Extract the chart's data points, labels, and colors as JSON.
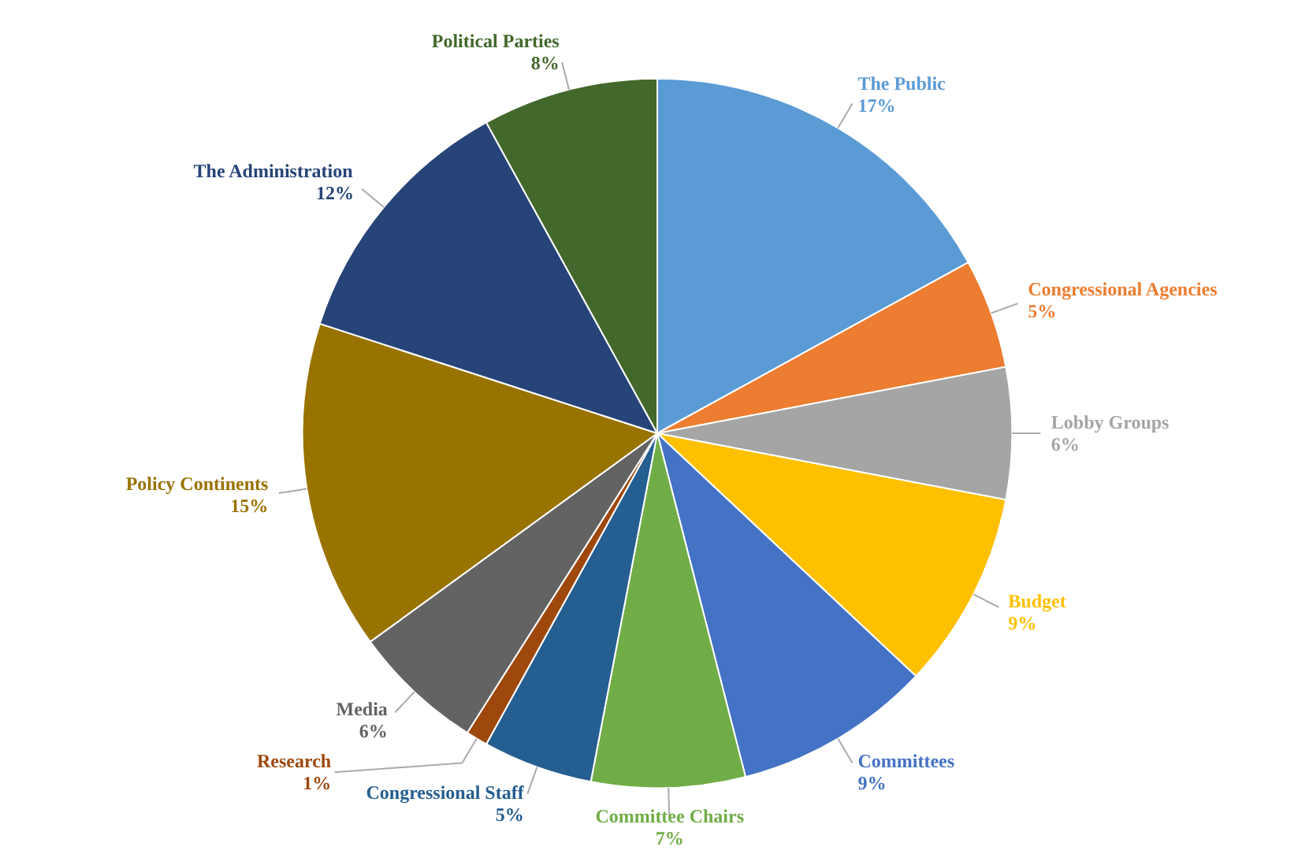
{
  "chart_data": {
    "type": "pie",
    "categories": [
      "The Public",
      "Congressional Agencies",
      "Lobby Groups",
      "Budget",
      "Committees",
      "Committee Chairs",
      "Congressional Staff",
      "Research",
      "Media",
      "Policy Continents",
      "The Administration",
      "Political Parties"
    ],
    "values": [
      17,
      5,
      6,
      9,
      9,
      7,
      5,
      1,
      6,
      15,
      12,
      8
    ],
    "value_labels": [
      "17%",
      "5%",
      "6%",
      "9%",
      "9%",
      "7%",
      "5%",
      "1%",
      "6%",
      "15%",
      "12%",
      "8%"
    ],
    "colors": [
      "#5b9bd5",
      "#ed7d31",
      "#a5a5a5",
      "#ffc000",
      "#4472c4",
      "#70ad47",
      "#255e91",
      "#9e480e",
      "#636363",
      "#997300",
      "#264478",
      "#43682b"
    ]
  }
}
